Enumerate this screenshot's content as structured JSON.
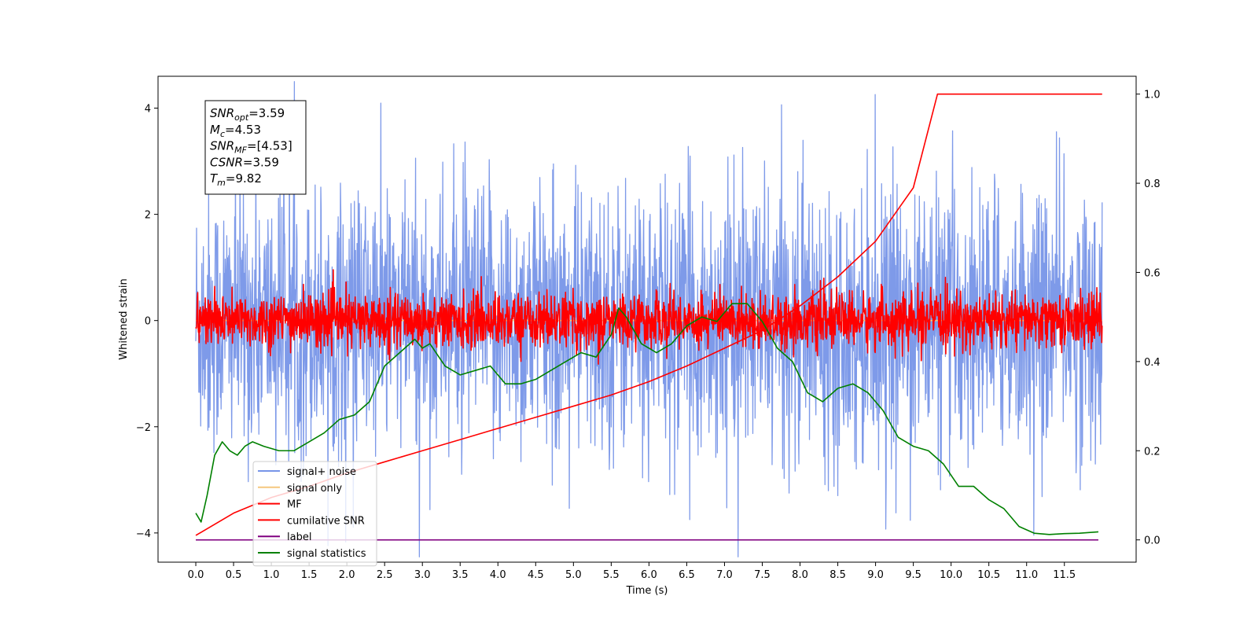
{
  "chart_data": {
    "type": "line",
    "xlabel": "Time (s)",
    "ylabel": "Whitened strain",
    "xlim": [
      -0.5,
      12.45
    ],
    "ylim": [
      -4.55,
      4.6
    ],
    "ylim_right": [
      -0.05,
      1.04
    ],
    "x_ticks": [
      "0.0",
      "0.5",
      "1.0",
      "1.5",
      "2.0",
      "2.5",
      "3.0",
      "3.5",
      "4.0",
      "4.5",
      "5.0",
      "5.5",
      "6.0",
      "6.5",
      "7.0",
      "7.5",
      "8.0",
      "8.5",
      "9.0",
      "9.5",
      "10.0",
      "10.5",
      "11.0",
      "11.5"
    ],
    "y_ticks": [
      "-4",
      "-2",
      "0",
      "2",
      "4"
    ],
    "y_ticks_right": [
      "0.0",
      "0.2",
      "0.4",
      "0.6",
      "0.8",
      "1.0"
    ],
    "annotation": [
      {
        "main": "SNR",
        "sub": "opt",
        "rest": "=3.59"
      },
      {
        "main": "M",
        "sub": "c",
        "rest": "=4.53"
      },
      {
        "main": "SNR",
        "sub": "MF",
        "rest": "=[4.53]"
      },
      {
        "main": "CSNR",
        "sub": "",
        "rest": "=3.59"
      },
      {
        "main": "T",
        "sub": "m",
        "rest": "=9.82"
      }
    ],
    "legend_location": "lower-left",
    "series": [
      {
        "name": "signal+ noise",
        "color": "#7795e8",
        "axis": "left",
        "kind": "noise",
        "amplitude": 1.25,
        "x_range": [
          0.0,
          12.0
        ]
      },
      {
        "name": "signal only",
        "color": "#f5c77e",
        "axis": "left",
        "kind": "flat",
        "y": 0.0,
        "x_range": [
          0.0,
          12.0
        ]
      },
      {
        "name": "MF",
        "color": "#ff0000",
        "axis": "left",
        "kind": "noise",
        "amplitude": 0.25,
        "x_range": [
          0.0,
          12.0
        ]
      },
      {
        "name": "cumilative SNR",
        "color": "#ff0000",
        "axis": "right",
        "kind": "curve",
        "x": [
          0.0,
          0.5,
          1.0,
          1.5,
          2.0,
          2.5,
          3.0,
          3.5,
          4.0,
          4.5,
          5.0,
          5.5,
          6.0,
          6.5,
          7.0,
          7.5,
          8.0,
          8.5,
          9.0,
          9.5,
          9.82,
          10.0,
          11.0,
          12.0
        ],
        "y": [
          0.01,
          0.06,
          0.095,
          0.12,
          0.15,
          0.175,
          0.2,
          0.225,
          0.25,
          0.275,
          0.3,
          0.325,
          0.355,
          0.39,
          0.43,
          0.47,
          0.525,
          0.59,
          0.67,
          0.79,
          1.0,
          1.0,
          1.0,
          1.0
        ]
      },
      {
        "name": "label",
        "color": "#800080",
        "axis": "right",
        "kind": "flat",
        "y": 0.0,
        "x_range": [
          0.0,
          11.95
        ]
      },
      {
        "name": "signal statistics",
        "color": "#008000",
        "axis": "right",
        "kind": "curve",
        "x": [
          0.0,
          0.07,
          0.15,
          0.25,
          0.35,
          0.45,
          0.55,
          0.65,
          0.75,
          0.9,
          1.1,
          1.3,
          1.5,
          1.7,
          1.9,
          2.1,
          2.3,
          2.5,
          2.7,
          2.9,
          3.0,
          3.1,
          3.3,
          3.5,
          3.7,
          3.9,
          4.1,
          4.3,
          4.5,
          4.7,
          4.9,
          5.1,
          5.3,
          5.5,
          5.6,
          5.7,
          5.9,
          6.1,
          6.3,
          6.5,
          6.7,
          6.9,
          7.1,
          7.3,
          7.5,
          7.7,
          7.9,
          8.1,
          8.3,
          8.5,
          8.7,
          8.9,
          9.1,
          9.3,
          9.5,
          9.7,
          9.9,
          10.1,
          10.3,
          10.5,
          10.7,
          10.9,
          11.1,
          11.3,
          11.5,
          11.7,
          11.95
        ],
        "y": [
          0.06,
          0.04,
          0.1,
          0.19,
          0.22,
          0.2,
          0.19,
          0.21,
          0.22,
          0.21,
          0.2,
          0.2,
          0.22,
          0.24,
          0.27,
          0.28,
          0.31,
          0.39,
          0.42,
          0.45,
          0.43,
          0.44,
          0.39,
          0.37,
          0.38,
          0.39,
          0.35,
          0.35,
          0.36,
          0.38,
          0.4,
          0.42,
          0.41,
          0.46,
          0.52,
          0.5,
          0.44,
          0.42,
          0.44,
          0.48,
          0.5,
          0.49,
          0.53,
          0.53,
          0.49,
          0.43,
          0.4,
          0.33,
          0.31,
          0.34,
          0.35,
          0.33,
          0.29,
          0.23,
          0.21,
          0.2,
          0.17,
          0.12,
          0.12,
          0.09,
          0.07,
          0.03,
          0.015,
          0.012,
          0.014,
          0.015,
          0.018
        ]
      }
    ]
  }
}
